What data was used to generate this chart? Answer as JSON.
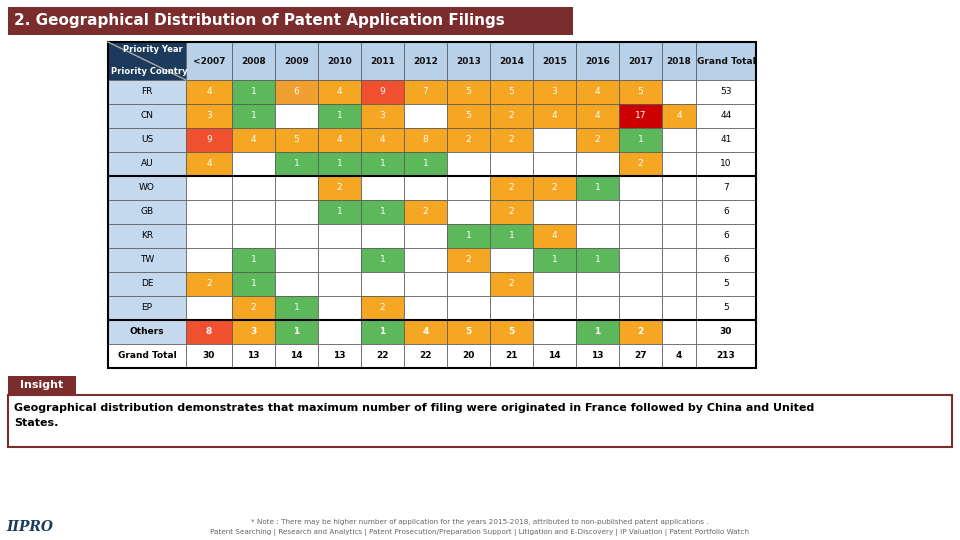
{
  "title": "2. Geographical Distribution of Patent Application Filings",
  "title_bg": "#7B2C2C",
  "header_bg": "#1B3A5C",
  "col_header_bg": "#B8D0E8",
  "row_bg": "#C5D9EE",
  "columns": [
    "Priority Country",
    "<2007",
    "2008",
    "2009",
    "2010",
    "2011",
    "2012",
    "2013",
    "2014",
    "2015",
    "2016",
    "2017",
    "2018",
    "Grand Total"
  ],
  "rows": [
    {
      "country": "FR",
      "vals": [
        "4",
        "1",
        "6",
        "4",
        "9",
        "7",
        "5",
        "5",
        "3",
        "4",
        "5",
        "",
        "53"
      ],
      "bold": false
    },
    {
      "country": "CN",
      "vals": [
        "3",
        "1",
        "",
        "1",
        "3",
        "",
        "5",
        "2",
        "4",
        "4",
        "17",
        "4",
        "44"
      ],
      "bold": false
    },
    {
      "country": "US",
      "vals": [
        "9",
        "4",
        "5",
        "4",
        "4",
        "8",
        "2",
        "2",
        "",
        "2",
        "1",
        "",
        "41"
      ],
      "bold": false
    },
    {
      "country": "AU",
      "vals": [
        "4",
        "",
        "1",
        "1",
        "1",
        "1",
        "",
        "",
        "",
        "",
        "2",
        "",
        "10"
      ],
      "bold": false
    },
    {
      "country": "WO",
      "vals": [
        "",
        "",
        "",
        "2",
        "",
        "",
        "",
        "2",
        "2",
        "1",
        "",
        "",
        "7"
      ],
      "bold": false
    },
    {
      "country": "GB",
      "vals": [
        "",
        "",
        "",
        "1",
        "1",
        "2",
        "",
        "2",
        "",
        "",
        "",
        "",
        "6"
      ],
      "bold": false
    },
    {
      "country": "KR",
      "vals": [
        "",
        "",
        "",
        "",
        "",
        "",
        "1",
        "1",
        "4",
        "",
        "",
        "",
        "6"
      ],
      "bold": false
    },
    {
      "country": "TW",
      "vals": [
        "",
        "1",
        "",
        "",
        "1",
        "",
        "2",
        "",
        "1",
        "1",
        "",
        "",
        "6"
      ],
      "bold": false
    },
    {
      "country": "DE",
      "vals": [
        "2",
        "1",
        "",
        "",
        "",
        "",
        "",
        "2",
        "",
        "",
        "",
        "",
        "5"
      ],
      "bold": false
    },
    {
      "country": "EP",
      "vals": [
        "",
        "2",
        "1",
        "",
        "2",
        "",
        "",
        "",
        "",
        "",
        "",
        "",
        "5"
      ],
      "bold": false
    },
    {
      "country": "Others",
      "vals": [
        "8",
        "3",
        "1",
        "",
        "1",
        "4",
        "5",
        "5",
        "",
        "1",
        "2",
        "",
        "30"
      ],
      "bold": true
    },
    {
      "country": "Grand Total",
      "vals": [
        "30",
        "13",
        "14",
        "13",
        "22",
        "22",
        "20",
        "21",
        "14",
        "13",
        "27",
        "4",
        "213"
      ],
      "bold": false
    }
  ],
  "cell_colors": {
    "FR": {
      "0": "#F5A623",
      "1": "#5DB85C",
      "2": "#F0A030",
      "3": "#F5A623",
      "4": "#F05030",
      "5": "#F5A623",
      "6": "#F5A623",
      "7": "#F5A623",
      "8": "#F5A623",
      "9": "#F5A623",
      "10": "#F5A623"
    },
    "CN": {
      "0": "#F5A623",
      "1": "#5DB85C",
      "3": "#5DB85C",
      "4": "#F5A623",
      "6": "#F5A623",
      "7": "#F5A623",
      "8": "#F5A623",
      "9": "#F5A623",
      "10": "#CC0000",
      "11": "#F5A623"
    },
    "US": {
      "0": "#F05030",
      "1": "#F5A623",
      "2": "#F5A623",
      "3": "#F5A623",
      "4": "#F5A623",
      "5": "#F5A623",
      "6": "#F5A623",
      "7": "#F5A623",
      "9": "#F5A623",
      "10": "#5DB85C"
    },
    "AU": {
      "0": "#F5A623",
      "2": "#5DB85C",
      "3": "#5DB85C",
      "4": "#5DB85C",
      "5": "#5DB85C",
      "10": "#F5A623"
    },
    "WO": {
      "3": "#F5A623",
      "7": "#F5A623",
      "8": "#F5A623",
      "9": "#5DB85C"
    },
    "GB": {
      "3": "#5DB85C",
      "4": "#5DB85C",
      "5": "#F5A623",
      "7": "#F5A623"
    },
    "KR": {
      "6": "#5DB85C",
      "7": "#5DB85C",
      "8": "#F5A623"
    },
    "TW": {
      "1": "#5DB85C",
      "4": "#5DB85C",
      "6": "#F5A623",
      "8": "#5DB85C",
      "9": "#5DB85C"
    },
    "DE": {
      "0": "#F5A623",
      "1": "#5DB85C",
      "7": "#F5A623"
    },
    "EP": {
      "1": "#F5A623",
      "2": "#5DB85C",
      "4": "#F5A623"
    },
    "Others": {
      "0": "#F05030",
      "1": "#F5A623",
      "2": "#5DB85C",
      "4": "#5DB85C",
      "5": "#F5A623",
      "6": "#F5A623",
      "7": "#F5A623",
      "9": "#5DB85C",
      "10": "#F5A623"
    }
  },
  "insight_bg": "#7B2C2C",
  "insight_text": "Geographical distribution demonstrates that maximum number of filing were originated in France followed by China and United\nStates.",
  "footer_note": "* Note : There may be higher number of application for the years 2015-2018, attributed to non-published patent applications .",
  "footer_text": "Patent Searching | Research and Analytics | Patent Prosecution/Preparation Support | Litigation and E-Discovery | IP Valuation | Patent Portfolio Watch"
}
